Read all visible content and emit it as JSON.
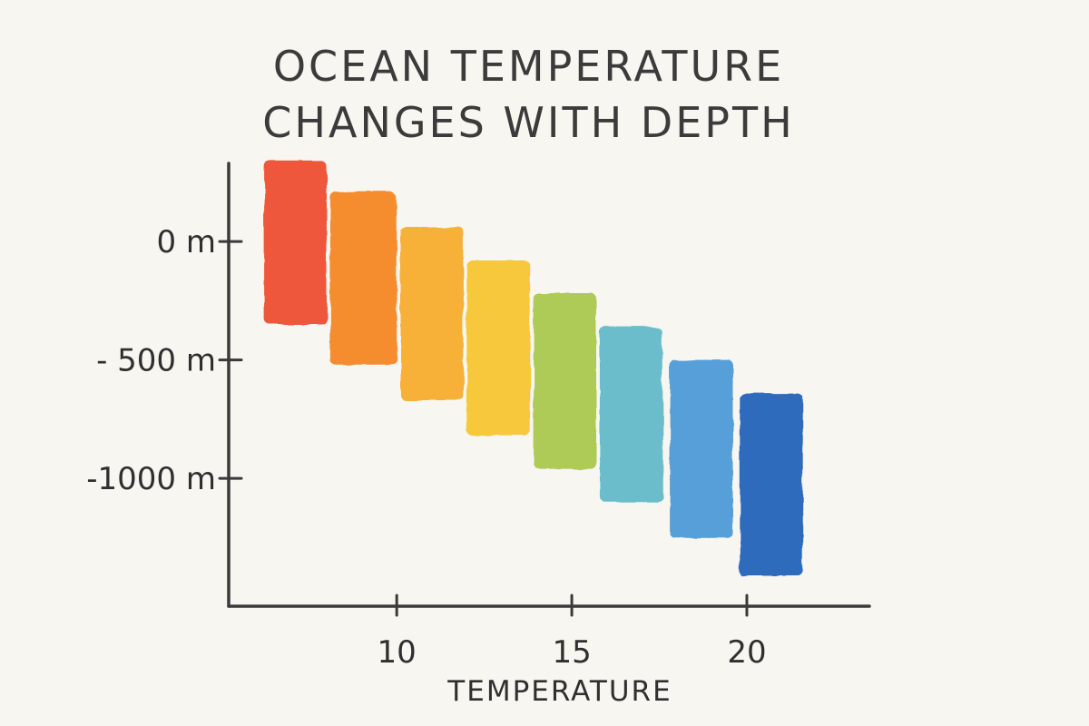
{
  "chart_data": {
    "type": "bar",
    "title_lines": [
      "OCEAN TEMPERATURE",
      "CHANGES WITH DEPTH"
    ],
    "xlabel": "TEMPERATURE",
    "ylabel": "",
    "xticks": [
      {
        "value": 10,
        "label": "10"
      },
      {
        "value": 15,
        "label": "15"
      },
      {
        "value": 20,
        "label": "20"
      }
    ],
    "yticks": [
      {
        "value": 0,
        "label": "0 m"
      },
      {
        "value": -500,
        "label": "- 500 m"
      },
      {
        "value": -1000,
        "label": "-1000 m"
      }
    ],
    "xlim": [
      5.2,
      23.5
    ],
    "ylim": [
      -1540,
      330
    ],
    "grid": false,
    "legend": "none",
    "bars": [
      {
        "x_start": 6.2,
        "x_end": 8.0,
        "depth_top": 340,
        "depth_bottom": -350,
        "color": "#ee4b2b"
      },
      {
        "x_start": 8.1,
        "x_end": 10.0,
        "depth_top": 210,
        "depth_bottom": -520,
        "color": "#f5821f"
      },
      {
        "x_start": 10.1,
        "x_end": 11.9,
        "depth_top": 60,
        "depth_bottom": -670,
        "color": "#f7a928"
      },
      {
        "x_start": 12.0,
        "x_end": 13.8,
        "depth_top": -80,
        "depth_bottom": -820,
        "color": "#f7c42d"
      },
      {
        "x_start": 13.9,
        "x_end": 15.7,
        "depth_top": -220,
        "depth_bottom": -960,
        "color": "#a8c84a"
      },
      {
        "x_start": 15.8,
        "x_end": 17.6,
        "depth_top": -360,
        "depth_bottom": -1100,
        "color": "#5fb9c9"
      },
      {
        "x_start": 17.8,
        "x_end": 19.6,
        "depth_top": -500,
        "depth_bottom": -1250,
        "color": "#4a97d6"
      },
      {
        "x_start": 19.8,
        "x_end": 21.6,
        "depth_top": -640,
        "depth_bottom": -1410,
        "color": "#1e5eb8"
      }
    ]
  }
}
